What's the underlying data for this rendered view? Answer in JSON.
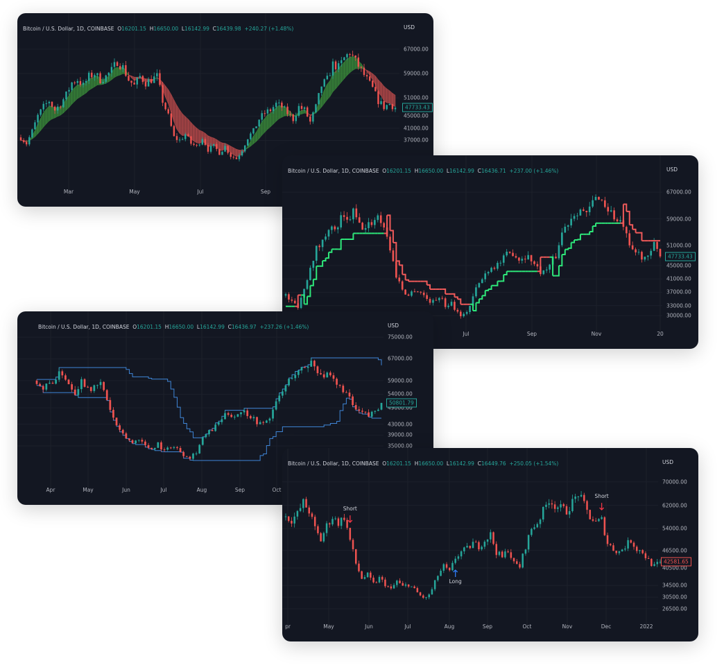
{
  "header": {
    "symbol": "Bitcoin / U.S. Dollar, 1D, COINBASE",
    "currency": "USD"
  },
  "colors": {
    "background": "#131722",
    "up": "#26a69a",
    "down": "#ef5350",
    "grid": "#1c202b",
    "cloud_up": "#3a8a3a",
    "cloud_down": "#b84a4a",
    "trend_up": "#2ee87a",
    "trend_down": "#f05a5a",
    "channel": "#3f86d8",
    "long": "#2f7cf6",
    "short": "#f23645"
  },
  "chart_data": [
    {
      "type": "candlestick",
      "indicator": "cloud",
      "ohlc": {
        "o": "16201.15",
        "h": "16650.00",
        "l": "16142.99",
        "c": "16439.98",
        "chg": "+240.27 (+1.48%)"
      },
      "ylim": [
        20000,
        72000
      ],
      "yticks": [
        "67000.00",
        "59000.00",
        "51000.00",
        "45000.00",
        "41000.00",
        "37000.00"
      ],
      "xticks": [
        "Mar",
        "May",
        "Jul",
        "Sep"
      ],
      "last_price": "47733.43",
      "last_color": "up",
      "close": [
        38000,
        36000,
        40000,
        45000,
        48000,
        50000,
        47000,
        49000,
        52000,
        56000,
        57000,
        55000,
        58000,
        59000,
        57000,
        58000,
        60000,
        63000,
        61000,
        57000,
        55000,
        58000,
        56000,
        57000,
        58000,
        50000,
        45000,
        38000,
        37000,
        39000,
        36000,
        35000,
        38000,
        34000,
        35000,
        33000,
        35000,
        32000,
        31000,
        34000,
        38000,
        40000,
        44000,
        46000,
        47000,
        49000,
        48000,
        46000,
        44000,
        48000,
        47000,
        43000,
        48000,
        55000,
        57000,
        62000,
        61000,
        64000,
        66000,
        63000,
        60000,
        57000,
        54000,
        50000,
        48000,
        49000,
        47733.43
      ]
    },
    {
      "type": "candlestick",
      "indicator": "trend-line",
      "ohlc": {
        "o": "16201.15",
        "h": "16650.00",
        "l": "16142.99",
        "c": "16436.71",
        "chg": "+237.00 (+1.46%)"
      },
      "ylim": [
        24400,
        71800
      ],
      "yticks": [
        "67000.00",
        "59000.00",
        "51000.00",
        "45000.00",
        "41000.00",
        "37000.00",
        "33000.00",
        "30000.00"
      ],
      "xticks": [
        "Jul",
        "Sep",
        "Nov",
        "20"
      ],
      "last_price": "47733.43",
      "last_color": "up",
      "close": [
        36000,
        34000,
        33000,
        38000,
        45000,
        50000,
        52000,
        57000,
        55000,
        59000,
        58000,
        61000,
        57000,
        56000,
        58000,
        60000,
        57000,
        50000,
        42000,
        38000,
        36000,
        38000,
        37000,
        35000,
        34000,
        36000,
        33000,
        34000,
        31000,
        30000,
        33000,
        38000,
        41000,
        44000,
        45000,
        46000,
        48000,
        49000,
        47000,
        48000,
        47000,
        44000,
        43000,
        45000,
        48000,
        55000,
        58000,
        61000,
        62000,
        60000,
        64000,
        66000,
        63000,
        61000,
        58000,
        57000,
        50000,
        49000,
        48000,
        47000,
        51000,
        47733.43
      ]
    },
    {
      "type": "candlestick",
      "indicator": "channel",
      "ohlc": {
        "o": "16201.15",
        "h": "16650.00",
        "l": "16142.99",
        "c": "16436.97",
        "chg": "+237.26 (+1.46%)"
      },
      "ylim": [
        18700,
        76800
      ],
      "yticks": [
        "75000.00",
        "67000.00",
        "59000.00",
        "54000.00",
        "49000.00",
        "43000.00",
        "39000.00",
        "35000.00"
      ],
      "xticks": [
        "Apr",
        "May",
        "Jun",
        "Jul",
        "Aug",
        "Sep",
        "Oct"
      ],
      "last_price": "50801.79",
      "last_color": "up",
      "close": [
        59000,
        56000,
        58000,
        60000,
        62000,
        58000,
        55000,
        59000,
        57000,
        56000,
        58000,
        52000,
        45000,
        40000,
        38000,
        36000,
        38000,
        35000,
        34000,
        36000,
        33000,
        35000,
        34000,
        32000,
        31000,
        33000,
        38000,
        40000,
        42000,
        45000,
        47000,
        46000,
        48000,
        47000,
        45000,
        43000,
        44000,
        48000,
        53000,
        57000,
        61000,
        62000,
        64000,
        66000,
        63000,
        61000,
        60000,
        57000,
        56000,
        52000,
        48000,
        47000,
        46000,
        48000,
        50801.79
      ]
    },
    {
      "type": "candlestick",
      "indicator": "signals",
      "ohlc": {
        "o": "16201.15",
        "h": "16650.00",
        "l": "16142.99",
        "c": "16449.76",
        "chg": "+250.05 (+1.54%)"
      },
      "ylim": [
        20300,
        74500
      ],
      "yticks": [
        "70000.00",
        "62000.00",
        "54000.00",
        "46500.00",
        "40500.00",
        "34500.00",
        "30500.00",
        "26500.00"
      ],
      "xticks": [
        "pr",
        "May",
        "Jun",
        "Jul",
        "Aug",
        "Sep",
        "Oct",
        "Nov",
        "Dec",
        "2022"
      ],
      "last_price": "42581.65",
      "last_color": "down",
      "close": [
        58000,
        57000,
        59000,
        63000,
        60000,
        54000,
        50000,
        55000,
        58000,
        56000,
        58000,
        50000,
        42000,
        37000,
        38000,
        35000,
        37000,
        35000,
        33000,
        36000,
        34000,
        35000,
        33000,
        31000,
        30000,
        33000,
        38000,
        41000,
        39000,
        44000,
        46000,
        47000,
        49000,
        48000,
        50000,
        52000,
        46000,
        44000,
        47000,
        42000,
        41000,
        48000,
        54000,
        56000,
        60000,
        64000,
        62000,
        61000,
        60000,
        63000,
        66000,
        62000,
        58000,
        56000,
        57000,
        49000,
        47000,
        46000,
        48000,
        50000,
        47000,
        46000,
        43000,
        41000,
        42581.65
      ],
      "signals": [
        {
          "label": "Short",
          "dir": "short",
          "index": 11
        },
        {
          "label": "Long",
          "dir": "long",
          "index": 29
        },
        {
          "label": "Short",
          "dir": "short",
          "index": 54
        }
      ]
    }
  ]
}
